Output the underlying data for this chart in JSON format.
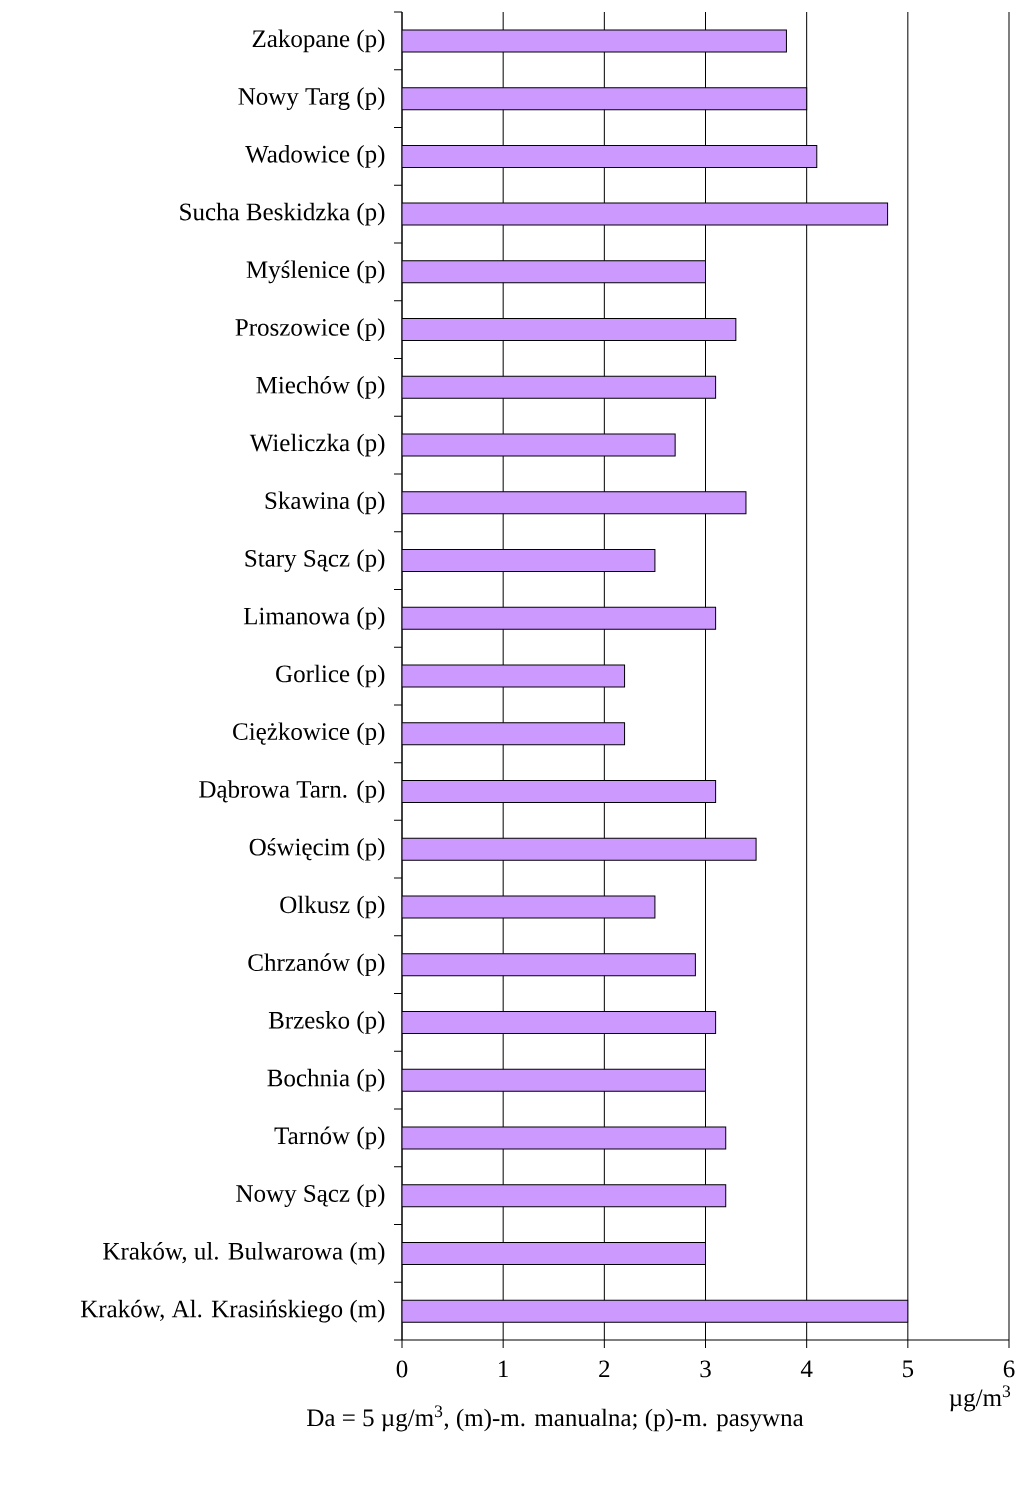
{
  "chart_data": {
    "type": "bar",
    "orientation": "horizontal",
    "categories": [
      "Zakopane (p)",
      "Nowy Targ (p)",
      "Wadowice (p)",
      "Sucha Beskidzka (p)",
      "Myślenice (p)",
      "Proszowice (p)",
      "Miechów (p)",
      "Wieliczka (p)",
      "Skawina (p)",
      "Stary Sącz (p)",
      "Limanowa (p)",
      "Gorlice (p)",
      "Ciężkowice (p)",
      "Dąbrowa Tarn. (p)",
      "Oświęcim (p)",
      "Olkusz (p)",
      "Chrzanów (p)",
      "Brzesko (p)",
      "Bochnia (p)",
      "Tarnów (p)",
      "Nowy Sącz (p)",
      "Kraków, ul. Bulwarowa (m)",
      "Kraków, Al. Krasińskiego (m)"
    ],
    "values": [
      3.8,
      4.0,
      4.1,
      4.8,
      3.0,
      3.3,
      3.1,
      2.7,
      3.4,
      2.5,
      3.1,
      2.2,
      2.2,
      3.1,
      3.5,
      2.5,
      2.9,
      3.1,
      3.0,
      3.2,
      3.2,
      3.0,
      5.0
    ],
    "color": "#cc99ff",
    "xlim": [
      0,
      6
    ],
    "xticks": [
      0,
      1,
      2,
      3,
      4,
      5,
      6
    ],
    "grid": "x",
    "xlabel": "µg/m$^{3}$",
    "annotations": [
      "Da =  5 µg/m$^{3}$,  (m)-m. manualna; (p)-m. pasywna"
    ]
  }
}
